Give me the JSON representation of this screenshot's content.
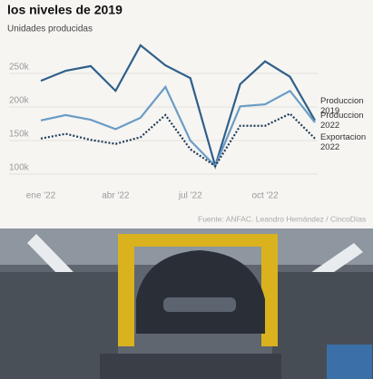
{
  "chart_data": {
    "type": "line",
    "title": "los niveles de 2019",
    "subtitle": "Unidades producidas",
    "source": "Fuente: ANFAC. Leandro Hernández / CincoDías",
    "categories": [
      "ene '22",
      null,
      null,
      "abr '22",
      null,
      null,
      "jul '22",
      null,
      null,
      "oct '22",
      null,
      null
    ],
    "series": [
      {
        "name": "Produccion 2019",
        "color": "#2f5f8a",
        "dash": false,
        "values": [
          239,
          254,
          261,
          224,
          292,
          262,
          243,
          112,
          234,
          268,
          245,
          180
        ]
      },
      {
        "name": "Produccion 2022",
        "color": "#6a9cc6",
        "dash": false,
        "values": [
          180,
          188,
          181,
          167,
          184,
          230,
          150,
          112,
          201,
          204,
          224,
          177
        ]
      },
      {
        "name": "Exportacion 2022",
        "color": "#1f3b5a",
        "dash": true,
        "values": [
          153,
          160,
          151,
          145,
          155,
          188,
          137,
          112,
          172,
          172,
          190,
          153
        ]
      }
    ],
    "ylim": [
      80,
      300
    ],
    "yticks": [
      {
        "value": 100,
        "label": "100k"
      },
      {
        "value": 150,
        "label": "150k"
      },
      {
        "value": 200,
        "label": "200k"
      },
      {
        "value": 250,
        "label": "250k"
      }
    ],
    "grid": true
  }
}
